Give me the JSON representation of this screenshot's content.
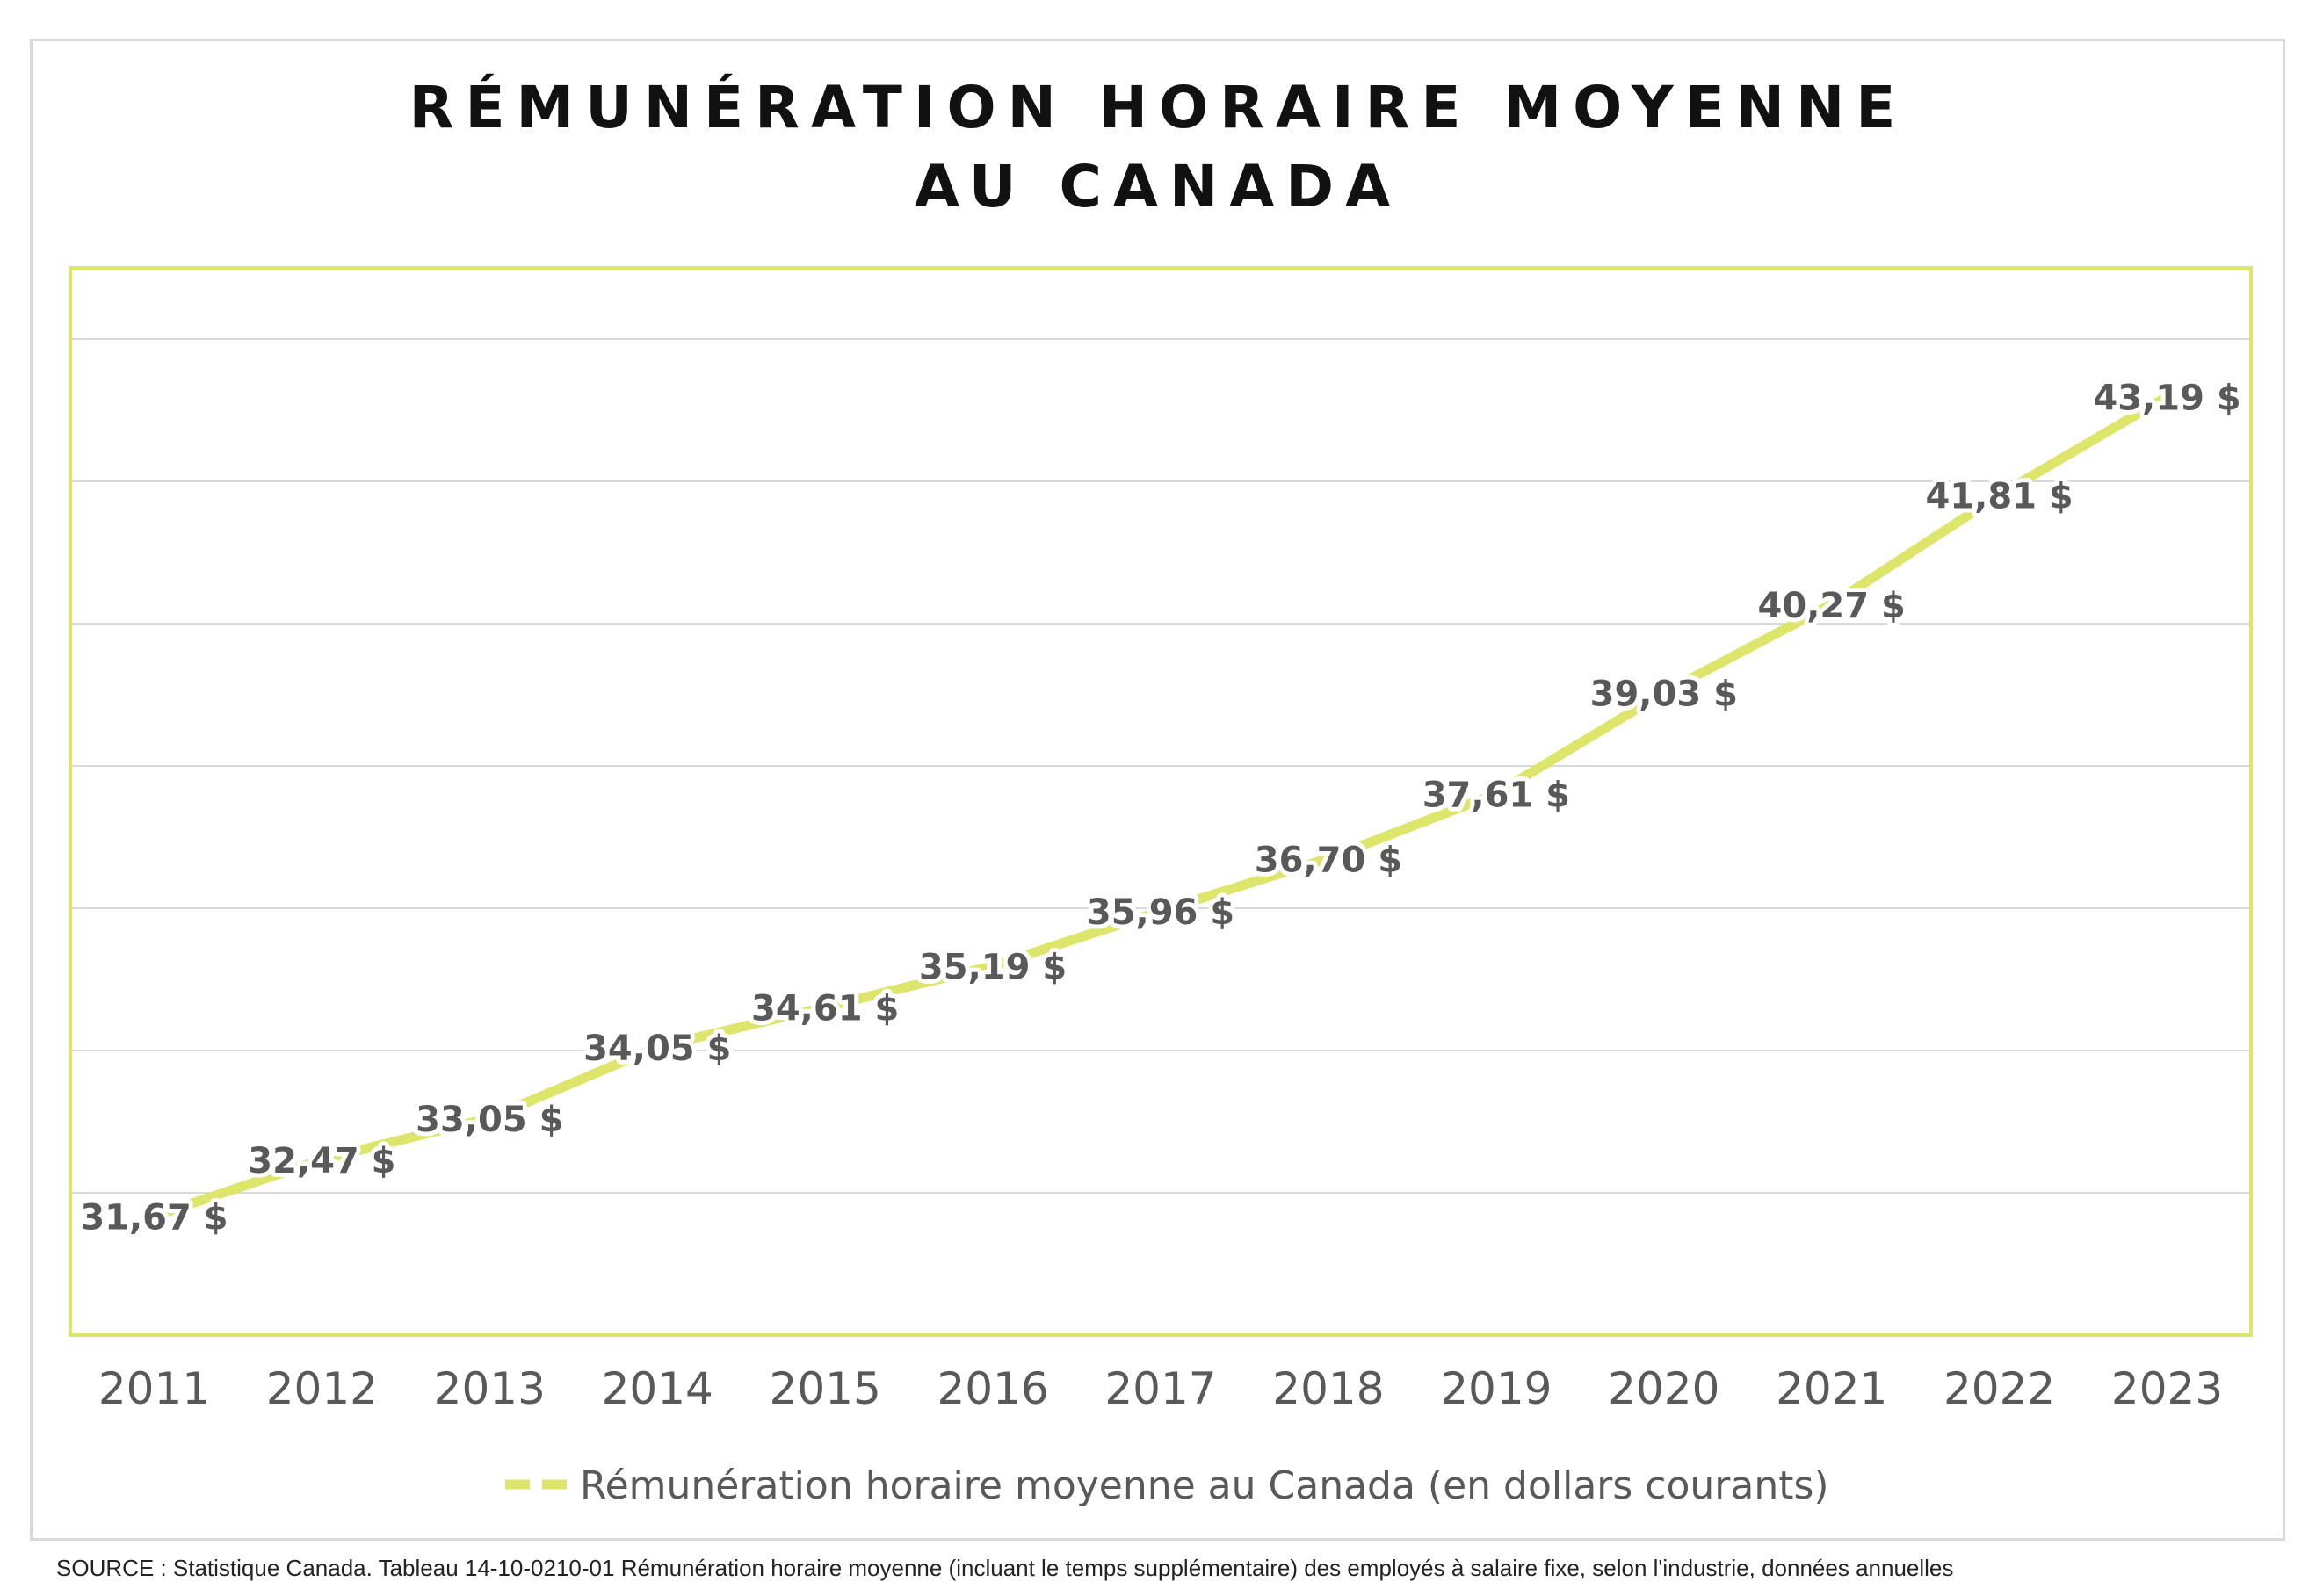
{
  "title_line1": "RÉMUNÉRATION HORAIRE MOYENNE",
  "title_line2": "AU CANADA",
  "source": "SOURCE : Statistique Canada. Tableau 14-10-0210-01  Rémunération horaire moyenne (incluant le temps supplémentaire) des employés à salaire fixe, selon l'industrie, données annuelles",
  "colors": {
    "line": "#dde56a",
    "plot_border": "#dde56a",
    "grid": "#d9d9d9",
    "label": "#595959",
    "title": "#111111"
  },
  "chart_data": {
    "type": "line",
    "categories": [
      "2011",
      "2012",
      "2013",
      "2014",
      "2015",
      "2016",
      "2017",
      "2018",
      "2019",
      "2020",
      "2021",
      "2022",
      "2023"
    ],
    "series": [
      {
        "name": "Rémunération horaire moyenne au Canada (en dollars courants)",
        "values": [
          31.67,
          32.47,
          33.05,
          34.05,
          34.61,
          35.19,
          35.96,
          36.7,
          37.61,
          39.03,
          40.27,
          41.81,
          43.19
        ],
        "data_labels": [
          "31,67 $",
          "32,47 $",
          "33,05 $",
          "34,05 $",
          "34,61 $",
          "35,19 $",
          "35,96 $",
          "36,70 $",
          "37,61 $",
          "39,03 $",
          "40,27 $",
          "41,81 $",
          "43,19 $"
        ],
        "line_style": "dashed"
      }
    ],
    "ylim": [
      30,
      45
    ],
    "y_axis_labels_visible": false,
    "grid": true,
    "legend_position": "bottom",
    "title": "RÉMUNÉRATION HORAIRE MOYENNE AU CANADA",
    "xlabel": "",
    "ylabel": ""
  }
}
